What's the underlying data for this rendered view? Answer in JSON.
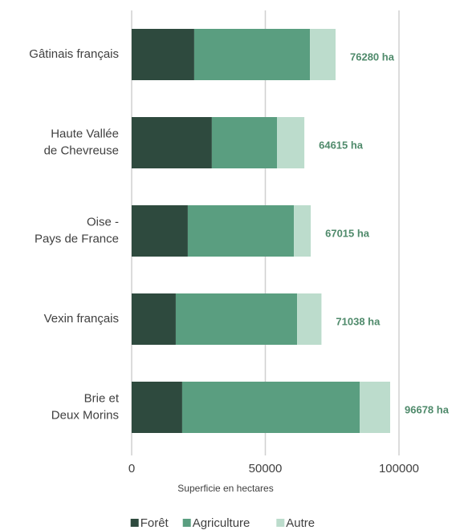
{
  "chart_data": {
    "type": "stacked-barh",
    "categories": [
      [
        "Gâtinais français"
      ],
      [
        "Haute Vallée",
        "de Chevreuse"
      ],
      [
        "Oise -",
        "Pays de France"
      ],
      [
        "Vexin français"
      ],
      [
        "Brie et",
        "Deux Morins"
      ]
    ],
    "series": [
      {
        "name": "Forêt",
        "color": "#2e4a3e",
        "values": [
          23400,
          30000,
          21000,
          16500,
          18900
        ]
      },
      {
        "name": "Agriculture",
        "color": "#5a9e80",
        "values": [
          43300,
          24400,
          39700,
          45400,
          66400
        ]
      },
      {
        "name": "Autre",
        "color": "#bcdccc",
        "values": [
          9580,
          10200,
          6300,
          9100,
          11400
        ]
      }
    ],
    "totals": [
      76280,
      64615,
      67015,
      71038,
      96678
    ],
    "total_labels": [
      "76280 ha",
      "64615 ha",
      "67015 ha",
      "71038 ha",
      "96678 ha"
    ],
    "xlabel": "Superficie en hectares",
    "xlim": [
      0,
      100000
    ],
    "xticks": [
      0,
      50000,
      100000
    ],
    "grid": true
  }
}
